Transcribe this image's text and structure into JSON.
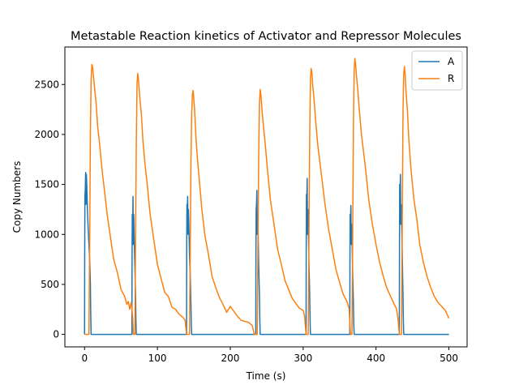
{
  "chart_data": {
    "type": "line",
    "title": "Metastable Reaction kinetics of Activator and Repressor Molecules",
    "xlabel": "Time (s)",
    "ylabel": "Copy Numbers",
    "xlim": [
      -27,
      525
    ],
    "ylim": [
      -125,
      2875
    ],
    "xticks": [
      0,
      100,
      200,
      300,
      400,
      500
    ],
    "yticks": [
      0,
      500,
      1000,
      1500,
      2000,
      2500
    ],
    "grid": false,
    "legend_position": "top-right",
    "series": [
      {
        "name": "A",
        "color": "#1f77b4",
        "x": [
          0,
          0.2,
          0.5,
          1,
          1.5,
          2,
          2.5,
          3,
          4,
          5,
          6,
          7,
          8,
          8.5,
          9,
          65,
          65.2,
          65.5,
          66,
          66.5,
          67,
          67.5,
          68,
          69,
          70,
          70.5,
          71,
          140,
          140.2,
          140.5,
          141,
          141.5,
          142,
          142.5,
          143,
          144,
          145,
          146,
          146.5,
          147,
          235,
          235.2,
          235.5,
          236,
          236.5,
          237,
          237.5,
          238,
          239,
          240,
          240.5,
          241,
          304,
          304.2,
          304.5,
          305,
          305.5,
          306,
          306.5,
          307,
          308,
          309,
          309.5,
          310,
          364,
          364.2,
          364.5,
          365,
          365.5,
          366,
          366.5,
          367,
          368,
          369,
          369.5,
          370,
          432,
          432.2,
          432.5,
          433,
          433.5,
          434,
          434.5,
          435,
          436,
          437,
          437.5,
          438,
          500
        ],
        "y": [
          0,
          800,
          1380,
          1450,
          1620,
          1300,
          1600,
          1500,
          1250,
          1050,
          900,
          750,
          500,
          200,
          0,
          0,
          800,
          1200,
          1000,
          1380,
          900,
          1200,
          1000,
          700,
          400,
          150,
          0,
          0,
          900,
          1300,
          1250,
          1380,
          1000,
          1250,
          1150,
          800,
          600,
          300,
          100,
          0,
          0,
          800,
          1250,
          1300,
          1440,
          1000,
          1200,
          1100,
          700,
          400,
          150,
          0,
          0,
          800,
          1400,
          1300,
          1560,
          1000,
          1250,
          1100,
          700,
          400,
          150,
          0,
          0,
          700,
          1200,
          1150,
          1290,
          900,
          1100,
          1000,
          600,
          300,
          100,
          0,
          0,
          900,
          1500,
          1400,
          1600,
          1100,
          1300,
          1200,
          800,
          400,
          150,
          0,
          0
        ]
      },
      {
        "name": "R",
        "color": "#ff7f0e",
        "x": [
          0,
          5,
          6,
          7,
          8,
          9,
          10,
          11,
          12,
          14,
          16,
          18,
          20,
          22,
          25,
          28,
          31,
          35,
          40,
          45,
          50,
          55,
          58,
          60,
          62,
          64,
          66,
          67,
          68,
          69,
          70,
          71,
          72,
          73,
          74,
          76,
          78,
          80,
          83,
          86,
          90,
          95,
          100,
          105,
          110,
          115,
          120,
          125,
          130,
          135,
          138,
          140,
          141,
          142,
          143,
          144,
          145,
          146,
          147,
          148,
          149,
          150,
          151,
          152,
          153,
          155,
          158,
          161,
          165,
          170,
          175,
          180,
          185,
          190,
          195,
          200,
          205,
          210,
          215,
          220,
          225,
          230,
          233,
          235,
          236,
          237,
          238,
          239,
          240,
          241,
          242,
          243,
          244,
          246,
          248,
          251,
          255,
          260,
          265,
          270,
          275,
          280,
          285,
          290,
          295,
          300,
          302,
          304,
          306,
          307,
          308,
          309,
          310,
          311,
          312,
          313,
          315,
          317,
          320,
          325,
          330,
          335,
          340,
          345,
          350,
          355,
          360,
          363,
          365,
          366,
          367,
          368,
          369,
          370,
          371,
          372,
          373,
          375,
          377,
          380,
          385,
          390,
          395,
          400,
          405,
          410,
          415,
          420,
          425,
          428,
          430,
          432,
          433,
          434,
          435,
          436,
          437,
          438,
          439,
          440,
          441,
          443,
          445,
          448,
          452,
          456,
          460,
          465,
          470,
          475,
          480,
          485,
          490,
          495,
          500
        ],
        "y": [
          0,
          0,
          0,
          900,
          2000,
          2550,
          2700,
          2680,
          2600,
          2450,
          2300,
          2080,
          1950,
          1800,
          1580,
          1400,
          1200,
          1000,
          750,
          620,
          450,
          380,
          300,
          330,
          250,
          320,
          180,
          0,
          0,
          0,
          900,
          1900,
          2500,
          2610,
          2550,
          2350,
          2200,
          1950,
          1700,
          1500,
          1200,
          950,
          700,
          560,
          420,
          380,
          270,
          250,
          200,
          170,
          140,
          0,
          0,
          0,
          0,
          0,
          800,
          1700,
          2200,
          2400,
          2440,
          2350,
          2250,
          2100,
          1950,
          1750,
          1500,
          1250,
          1000,
          800,
          580,
          470,
          370,
          300,
          220,
          280,
          230,
          180,
          140,
          130,
          120,
          90,
          0,
          0,
          0,
          0,
          900,
          1800,
          2300,
          2450,
          2400,
          2300,
          2200,
          2050,
          1900,
          1650,
          1350,
          1100,
          850,
          700,
          540,
          450,
          360,
          310,
          260,
          240,
          180,
          0,
          0,
          0,
          1000,
          2000,
          2550,
          2660,
          2620,
          2500,
          2350,
          2150,
          1900,
          1600,
          1300,
          1050,
          850,
          650,
          520,
          400,
          330,
          260,
          0,
          0,
          0,
          1000,
          2100,
          2650,
          2760,
          2700,
          2600,
          2450,
          2250,
          2000,
          1700,
          1350,
          1100,
          900,
          720,
          580,
          460,
          380,
          300,
          260,
          170,
          0,
          0,
          0,
          0,
          1100,
          2200,
          2600,
          2680,
          2600,
          2450,
          2250,
          1950,
          1650,
          1350,
          1150,
          900,
          720,
          580,
          470,
          380,
          320,
          280,
          240,
          160
        ]
      }
    ]
  }
}
